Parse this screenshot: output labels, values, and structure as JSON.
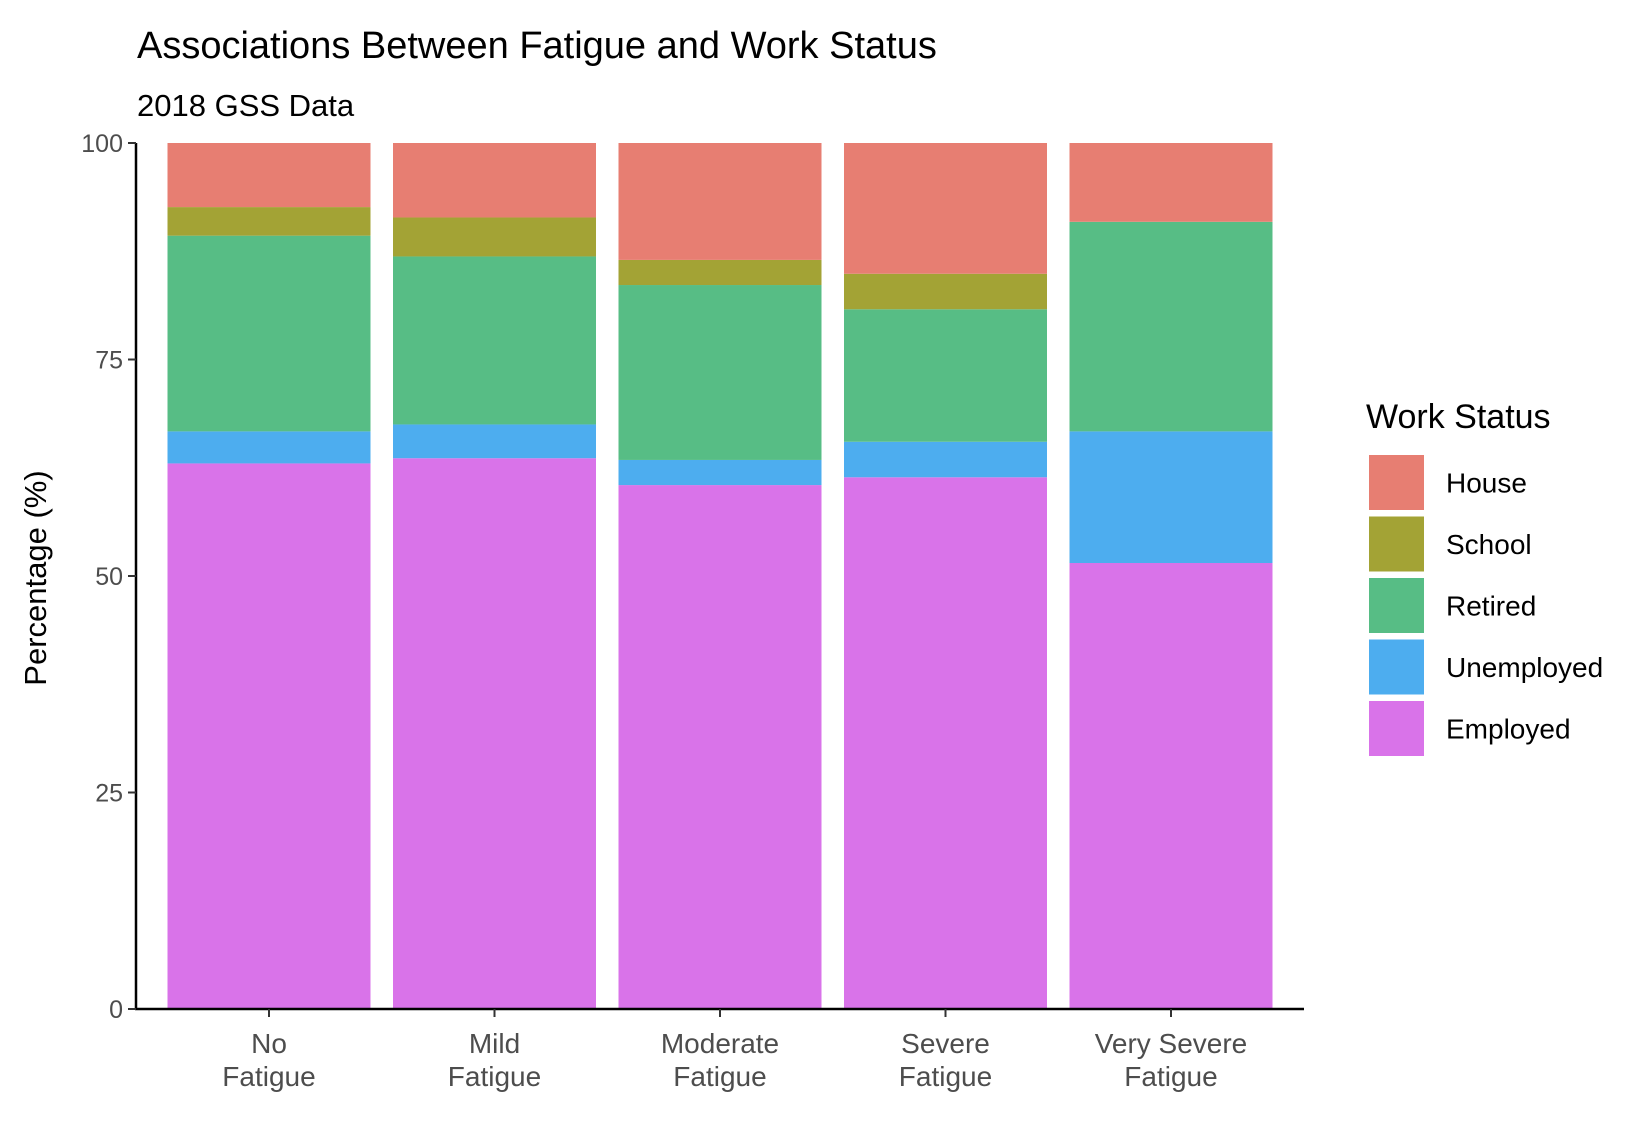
{
  "chart_data": {
    "type": "bar",
    "stacked": true,
    "title": "Associations Between Fatigue and Work Status",
    "subtitle": "2018 GSS Data",
    "xlabel": "",
    "ylabel": "Percentage (%)",
    "ylim": [
      0,
      100
    ],
    "yticks": [
      0,
      25,
      50,
      75,
      100
    ],
    "grid": false,
    "legend_placement": "right",
    "legend_title": "Work Status",
    "categories": [
      [
        "No",
        "Fatigue"
      ],
      [
        "Mild",
        "Fatigue"
      ],
      [
        "Moderate",
        "Fatigue"
      ],
      [
        "Severe",
        "Fatigue"
      ],
      [
        "Very Severe",
        "Fatigue"
      ]
    ],
    "series": [
      {
        "name": "Employed",
        "color": "#D973E9",
        "values": [
          63.0,
          63.6,
          60.5,
          61.4,
          51.5
        ]
      },
      {
        "name": "Unemployed",
        "color": "#4DADEF",
        "values": [
          3.7,
          3.9,
          2.9,
          4.1,
          15.2
        ]
      },
      {
        "name": "Retired",
        "color": "#57BD85",
        "values": [
          22.6,
          19.4,
          20.2,
          15.3,
          24.2
        ]
      },
      {
        "name": "School",
        "color": "#A3A335",
        "values": [
          3.3,
          4.5,
          2.9,
          4.1,
          0.0
        ]
      },
      {
        "name": "House",
        "color": "#E77E72",
        "values": [
          7.4,
          8.6,
          13.5,
          15.1,
          9.1
        ]
      }
    ],
    "legend_order": [
      "House",
      "School",
      "Retired",
      "Unemployed",
      "Employed"
    ]
  }
}
